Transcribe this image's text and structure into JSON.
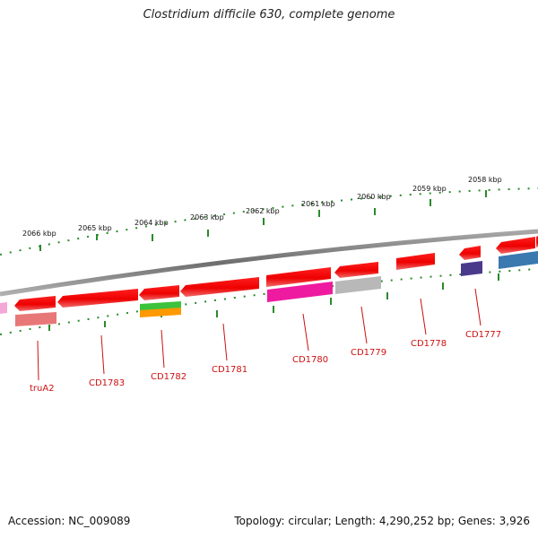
{
  "title": "Clostridium difficile 630, complete genome",
  "footer": {
    "accession": "Accession: NC_009089",
    "summary": "Topology: circular; Length: 4,290,252 bp; Genes: 3,926"
  },
  "kbp_labels": [
    "2066 kbp",
    "2065 kbp",
    "2064 kbp",
    "2063 kbp",
    "2062 kbp",
    "2061 kbp",
    "2060 kbp",
    "2059 kbp",
    "2058 kbp"
  ],
  "gene_labels": [
    "truA2",
    "CD1783",
    "CD1782",
    "CD1781",
    "CD1780",
    "CD1779",
    "CD1778",
    "CD1777"
  ],
  "colors": {
    "backbone": "#8a8a8a",
    "gene": "#ee1111",
    "label": "#cc1111",
    "ticks": "#2a8a2a",
    "salmon": "#e87878",
    "green": "#3cc23c",
    "orange": "#ff9900",
    "magenta": "#ee1aa0",
    "gray": "#b8b8b8",
    "purple": "#4a3a8c",
    "steelblue": "#3a78b0",
    "pink": "#f4a8d8"
  }
}
